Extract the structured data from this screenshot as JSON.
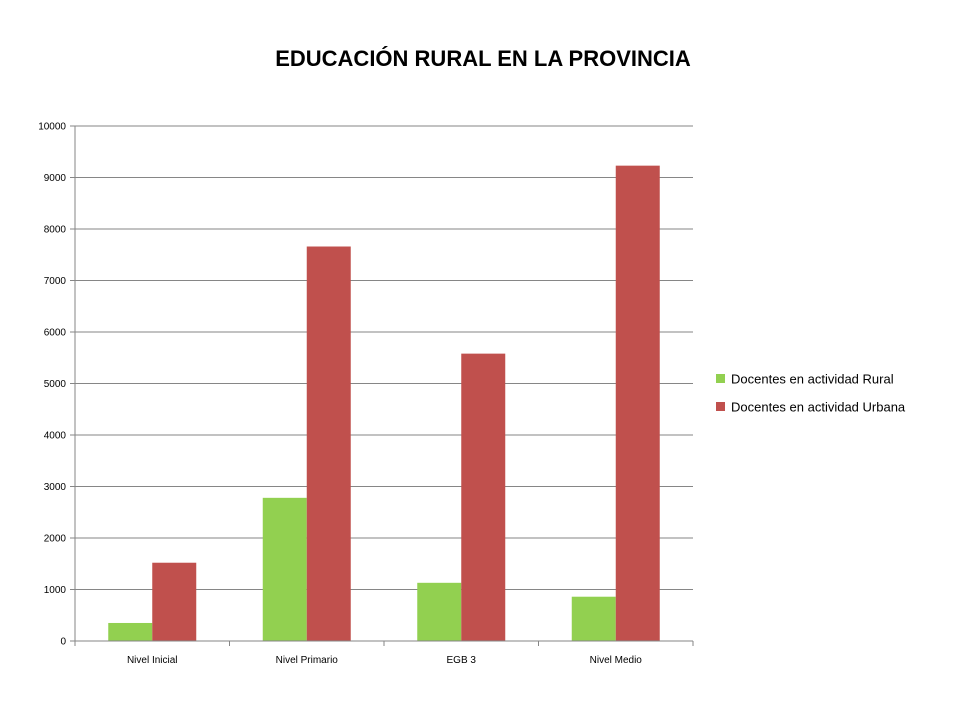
{
  "chart_data": {
    "type": "bar",
    "title": "EDUCACIÓN RURAL EN LA PROVINCIA",
    "xlabel": "",
    "ylabel": "",
    "categories": [
      "Nivel Inicial",
      "Nivel Primario",
      "EGB 3",
      "Nivel Medio"
    ],
    "series": [
      {
        "name": "Docentes en actividad Rural",
        "color": "#92d050",
        "values": [
          350,
          2780,
          1130,
          860
        ]
      },
      {
        "name": "Docentes en actividad Urbana",
        "color": "#c0504d",
        "values": [
          1520,
          7660,
          5580,
          9230
        ]
      }
    ],
    "ylim": [
      0,
      10000
    ],
    "yticks": [
      "0",
      "1000",
      "2000",
      "3000",
      "4000",
      "5000",
      "6000",
      "7000",
      "8000",
      "9000",
      "10000"
    ],
    "grid": true,
    "legend_position": "right"
  }
}
